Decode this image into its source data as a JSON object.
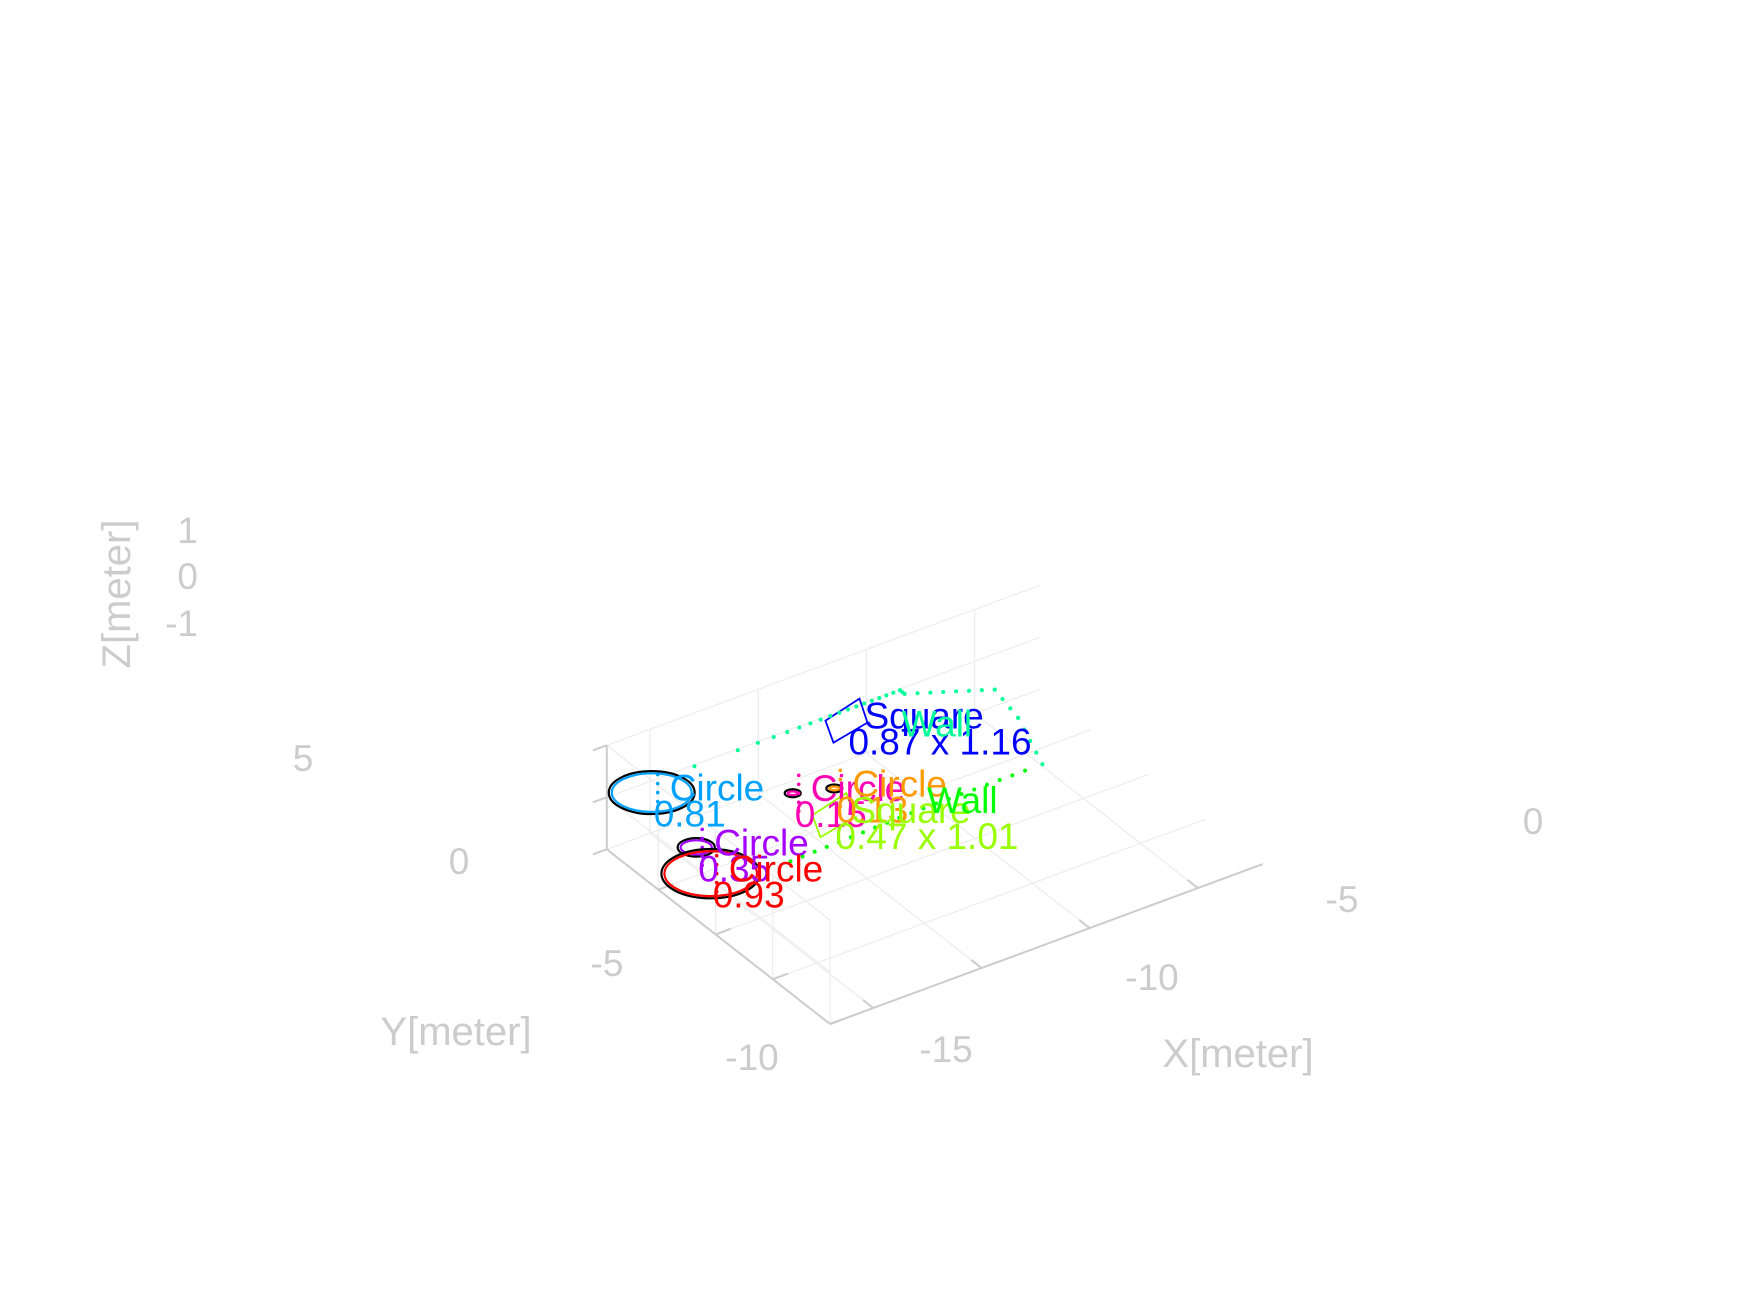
{
  "chart_data": {
    "type": "scatter",
    "title": "",
    "xlabel": "X[meter]",
    "ylabel": "Y[meter]",
    "zlabel": "Z[meter]",
    "xlim": [
      -17,
      3
    ],
    "ylim": [
      -10,
      9.5
    ],
    "zlim": [
      -1,
      1
    ],
    "x_ticks": [
      "-15",
      "-10",
      "-5",
      "0"
    ],
    "y_ticks": [
      "-10",
      "-5",
      "0",
      "5"
    ],
    "z_ticks": [
      "-1",
      "0",
      "1"
    ],
    "grid": true,
    "colors": {
      "axis": "#cccccc",
      "grid": "#ececec",
      "outline": "#000000"
    },
    "objects": [
      {
        "kind": "circle",
        "label": "Circle",
        "value": "0.81",
        "color": "#00a2ff",
        "x": -15.4,
        "y": 8.6,
        "z": 0,
        "size": 0.81
      },
      {
        "kind": "circle",
        "label": "Circle",
        "value": "0.35",
        "color": "#a600ff",
        "x": -16.2,
        "y": 3.2,
        "z": 0,
        "size": 0.35
      },
      {
        "kind": "circle",
        "label": "Circle",
        "value": "0.93",
        "color": "#ff0000",
        "x": -16.8,
        "y": 0.8,
        "z": 0,
        "size": 0.93
      },
      {
        "kind": "circle",
        "label": "Circle",
        "value": "0.15",
        "color": "#ff00b4",
        "x": -11.0,
        "y": 4.6,
        "z": 0,
        "size": 0.15
      },
      {
        "kind": "circle",
        "label": "Circle",
        "value": "0.13",
        "color": "#ff9900",
        "x": -9.5,
        "y": 3.8,
        "z": 0,
        "size": 0.13
      },
      {
        "kind": "square",
        "label": "Square",
        "value": "0.87 x 1.16",
        "color": "#0000ff",
        "x": -6.4,
        "y": 8.6,
        "z": 0
      },
      {
        "kind": "square",
        "label": "Square",
        "value": "0.47 x 1.01",
        "color": "#99ff00",
        "x": -10.6,
        "y": 1.8,
        "z": 0
      }
    ],
    "walls": [
      {
        "label": "Wall",
        "color": "#00ff99",
        "points": [
          [
            -13,
            9.4,
            0
          ],
          [
            -3.5,
            9.4,
            0
          ],
          [
            -3.5,
            9.0,
            0
          ],
          [
            -0.5,
            6.8,
            0
          ],
          [
            -0.9,
            4.0,
            0
          ],
          [
            -2.0,
            -0.2,
            0
          ]
        ]
      },
      {
        "label": "Wall",
        "color": "#00ff00",
        "points": [
          [
            -13.8,
            -0.5,
            0
          ],
          [
            -7.5,
            -0.2,
            0
          ],
          [
            -2.8,
            -0.2,
            0
          ]
        ]
      }
    ]
  }
}
